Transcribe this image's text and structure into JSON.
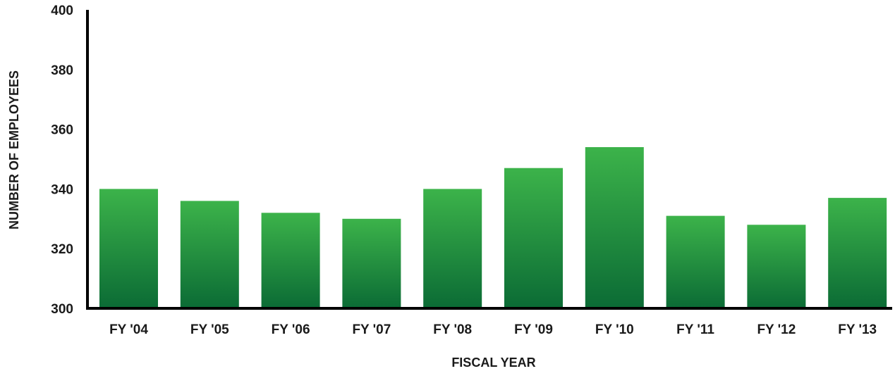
{
  "chart_data": {
    "type": "bar",
    "categories": [
      "FY '04",
      "FY '05",
      "FY '06",
      "FY '07",
      "FY '08",
      "FY '09",
      "FY '10",
      "FY '11",
      "FY '12",
      "FY '13"
    ],
    "values": [
      340,
      336,
      332,
      330,
      340,
      347,
      354,
      331,
      328,
      337
    ],
    "title": "",
    "xlabel": "FISCAL YEAR",
    "ylabel": "NUMBER OF EMPLOYEES",
    "ylim": [
      300,
      400
    ],
    "yticks": [
      300,
      320,
      340,
      360,
      380,
      400
    ],
    "grid": false,
    "legend": "none",
    "colors": {
      "bar_top": "#3cb34a",
      "bar_bottom": "#0b6b35",
      "axis": "#000000"
    }
  }
}
